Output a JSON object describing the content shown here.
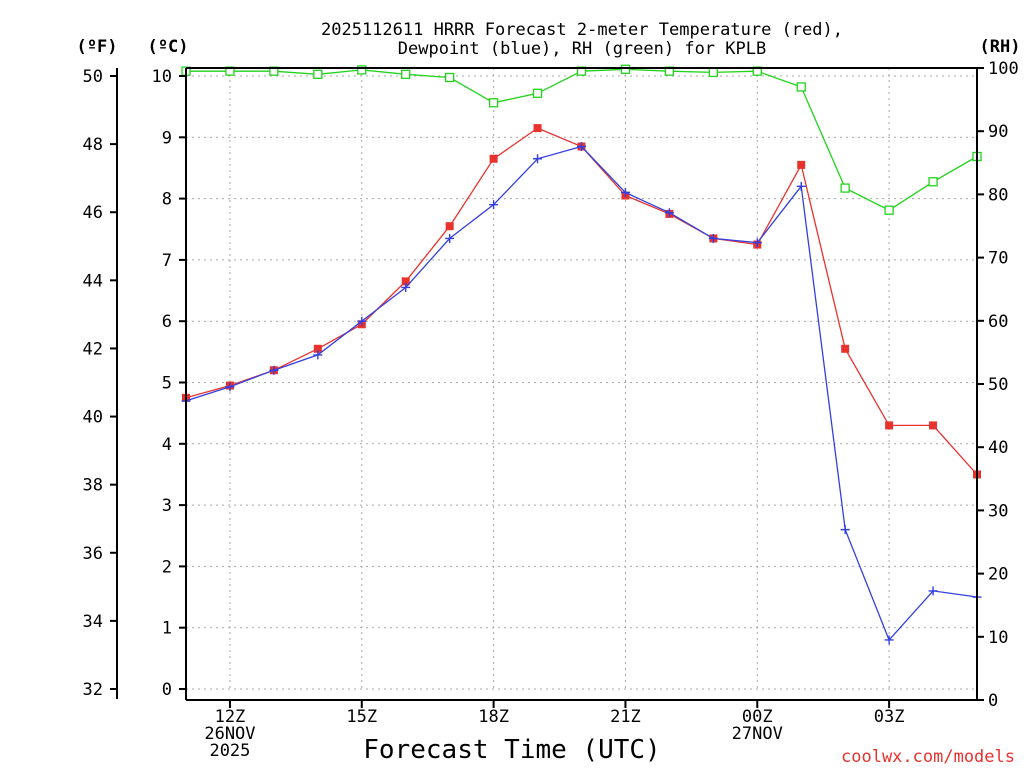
{
  "chart_data": {
    "type": "line",
    "title_line1": "2025112611 HRRR Forecast 2-meter Temperature (red),",
    "title_line2": "Dewpoint (blue), RH (green) for KPLB",
    "xlabel": "Forecast Time (UTC)",
    "credit": "coolwx.com/models",
    "units": {
      "left_outer": "(ºF)",
      "left_inner": "(ºC)",
      "right": "(RH)"
    },
    "x_hours": [
      11,
      12,
      13,
      14,
      15,
      16,
      17,
      18,
      19,
      20,
      21,
      22,
      23,
      24,
      25,
      26,
      27,
      28,
      29
    ],
    "xlim": [
      11,
      29
    ],
    "x_ticks": [
      {
        "hour": 12,
        "lines": [
          "12Z",
          "26NOV",
          "2025"
        ]
      },
      {
        "hour": 15,
        "lines": [
          "15Z"
        ]
      },
      {
        "hour": 18,
        "lines": [
          "18Z"
        ]
      },
      {
        "hour": 21,
        "lines": [
          "21Z"
        ]
      },
      {
        "hour": 24,
        "lines": [
          "00Z",
          "27NOV"
        ]
      },
      {
        "hour": 27,
        "lines": [
          "03Z"
        ]
      }
    ],
    "celsius_axis": {
      "min": 0,
      "max": 10,
      "ticks": [
        "0",
        "1",
        "2",
        "3",
        "4",
        "5",
        "6",
        "7",
        "8",
        "9",
        "10"
      ]
    },
    "fahrenheit_axis": {
      "ticks": [
        "32",
        "34",
        "36",
        "38",
        "40",
        "42",
        "44",
        "46",
        "48",
        "50"
      ]
    },
    "rh_axis": {
      "min": 0,
      "max": 100,
      "ticks": [
        "0",
        "10",
        "20",
        "30",
        "40",
        "50",
        "60",
        "70",
        "80",
        "90",
        "100"
      ]
    },
    "series": [
      {
        "name": "Temperature",
        "color": "#e8322e",
        "axis": "celsius",
        "marker": "filled-square",
        "values": [
          4.75,
          4.95,
          5.2,
          5.55,
          5.95,
          6.65,
          7.55,
          8.65,
          9.15,
          8.85,
          8.05,
          7.75,
          7.35,
          7.25,
          8.55,
          5.55,
          4.3,
          4.3,
          3.5
        ]
      },
      {
        "name": "Dewpoint",
        "color": "#3340e0",
        "axis": "celsius",
        "marker": "plus",
        "values": [
          4.7,
          4.93,
          5.2,
          5.45,
          6.0,
          6.55,
          7.35,
          7.9,
          8.65,
          8.85,
          8.1,
          7.77,
          7.35,
          7.28,
          8.2,
          2.6,
          0.8,
          1.6,
          1.5
        ]
      },
      {
        "name": "RH",
        "color": "#22d31c",
        "axis": "rh",
        "marker": "open-square",
        "values": [
          99.5,
          99.5,
          99.5,
          99.0,
          99.7,
          99.0,
          98.5,
          94.5,
          96.0,
          99.5,
          99.8,
          99.5,
          99.3,
          99.5,
          97.0,
          81.0,
          77.5,
          82.0,
          86.0
        ]
      }
    ]
  }
}
